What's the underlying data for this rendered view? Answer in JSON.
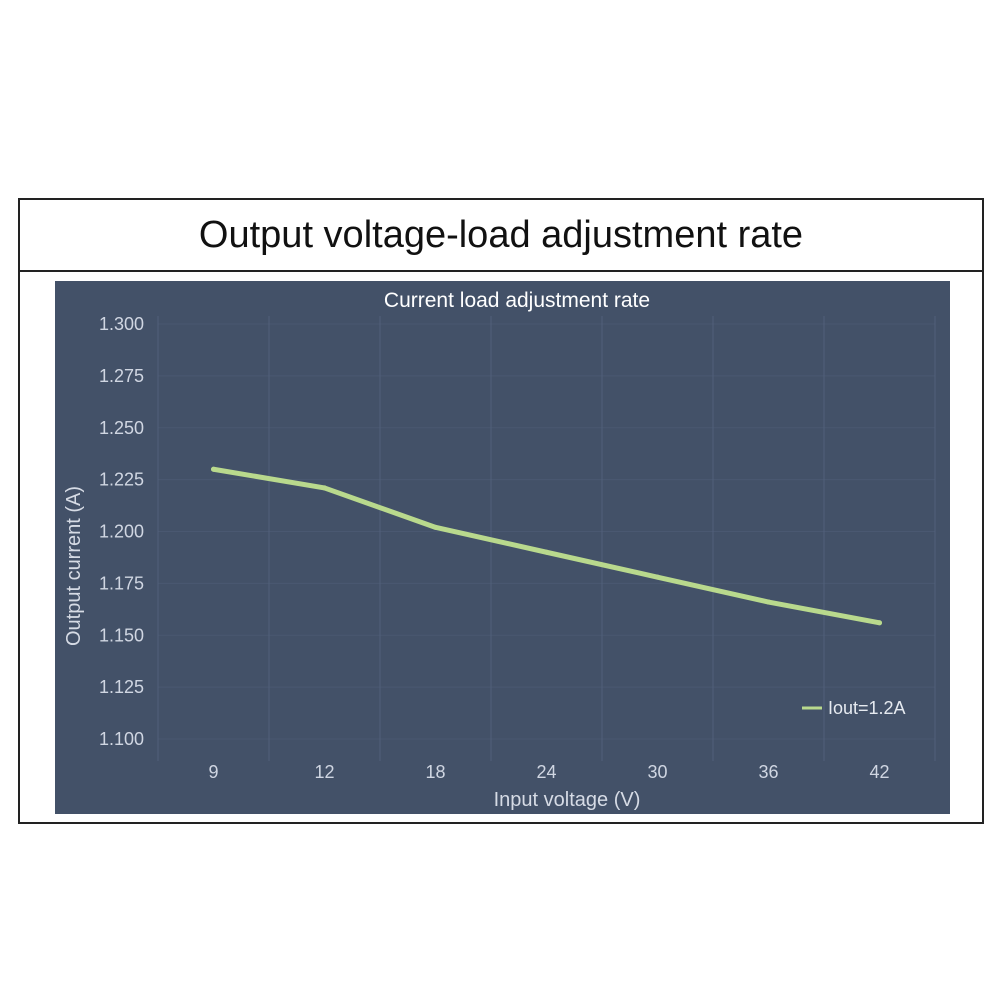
{
  "banner_title": "Output voltage-load adjustment rate",
  "colors": {
    "panel": "#435168",
    "grid": "#51607a",
    "line": "#b9d98d",
    "text": "#d0d6e2"
  },
  "chart_data": {
    "type": "line",
    "title": "Current load adjustment rate",
    "xlabel": "Input voltage (V)",
    "ylabel": "Output current (A)",
    "x": [
      9,
      12,
      18,
      24,
      30,
      36,
      42
    ],
    "x_tick_labels": [
      "9",
      "12",
      "18",
      "24",
      "30",
      "36",
      "42"
    ],
    "y_ticks": [
      1.1,
      1.125,
      1.15,
      1.175,
      1.2,
      1.225,
      1.25,
      1.275,
      1.3
    ],
    "y_tick_labels": [
      "1.100",
      "1.125",
      "1.150",
      "1.175",
      "1.200",
      "1.225",
      "1.250",
      "1.275",
      "1.300"
    ],
    "ylim": [
      1.1,
      1.3
    ],
    "grid": true,
    "legend_position": "bottom-right",
    "series": [
      {
        "name": "Iout=1.2A",
        "values": [
          1.23,
          1.221,
          1.202,
          1.19,
          1.178,
          1.166,
          1.156
        ]
      }
    ]
  }
}
